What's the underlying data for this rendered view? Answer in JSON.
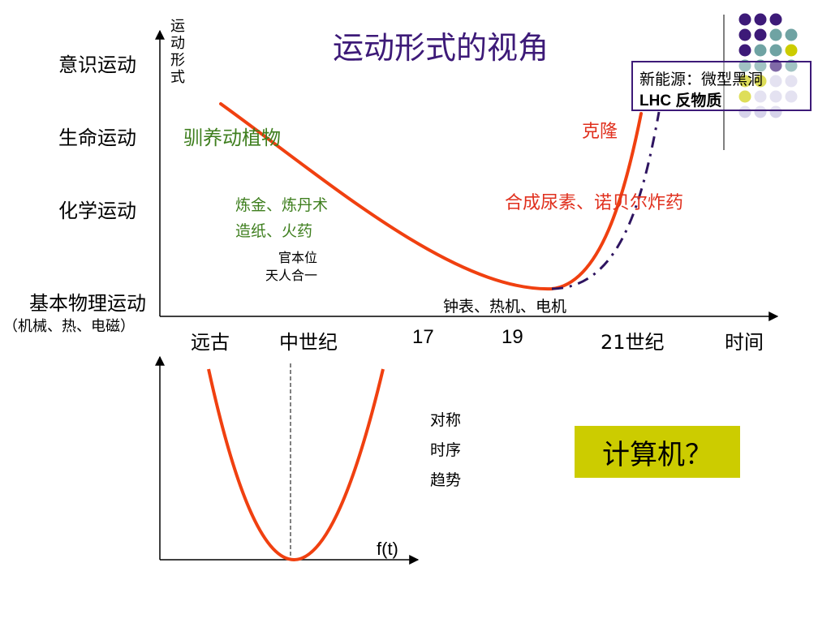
{
  "title": "运动形式的视角",
  "vaxis_title": "运动形式",
  "y_levels": {
    "consciousness": "意识运动",
    "life": "生命运动",
    "chemical": "化学运动",
    "physical": "基本物理运动",
    "physical_sub": "（机械、热、电磁）"
  },
  "x_labels": {
    "ancient": "远古",
    "medieval": "中世纪",
    "c17": "17",
    "c19": "19",
    "c21": "21世纪",
    "time": "时间"
  },
  "annotations": {
    "domestication": "驯养动植物",
    "alchemy_line1": "炼金、炼丹术",
    "alchemy_line2": "造纸、火药",
    "officialdom_line1": "官本位",
    "officialdom_line2": "天人合一",
    "machines": "钟表、热机、电机",
    "synthesis": "合成尿素、诺贝尔炸药",
    "cloning": "克隆",
    "new_energy_line1": "新能源：微型黑洞",
    "new_energy_line2": "LHC 反物质"
  },
  "lower": {
    "features": [
      "对称",
      "时序",
      "趋势"
    ],
    "ft_label": "f(t)",
    "computer": "计算机？"
  },
  "colors": {
    "curve": "#f04010",
    "dashdot": "#2e1460",
    "title": "#3d1a78",
    "green_text": "#3f7f1f",
    "red_text": "#e0301e",
    "computer_bg": "#cccc00",
    "dot_purple": "#3d1a78",
    "dot_teal": "#6fa3a3",
    "dot_yellow": "#cccc00",
    "dot_lavender": "#d6d3ea"
  },
  "dot_grid_colors": [
    [
      "purple",
      "purple",
      "purple",
      null
    ],
    [
      "purple",
      "purple",
      "teal",
      "teal"
    ],
    [
      "purple",
      "teal",
      "teal",
      "yellow"
    ],
    [
      "teal",
      "teal",
      "purple",
      "teal"
    ],
    [
      "yellow",
      "yellow",
      "lavender",
      "lavender"
    ],
    [
      "yellow",
      "lavender",
      "lavender",
      "lavender"
    ],
    [
      "lavender",
      "lavender",
      "lavender",
      null
    ]
  ]
}
